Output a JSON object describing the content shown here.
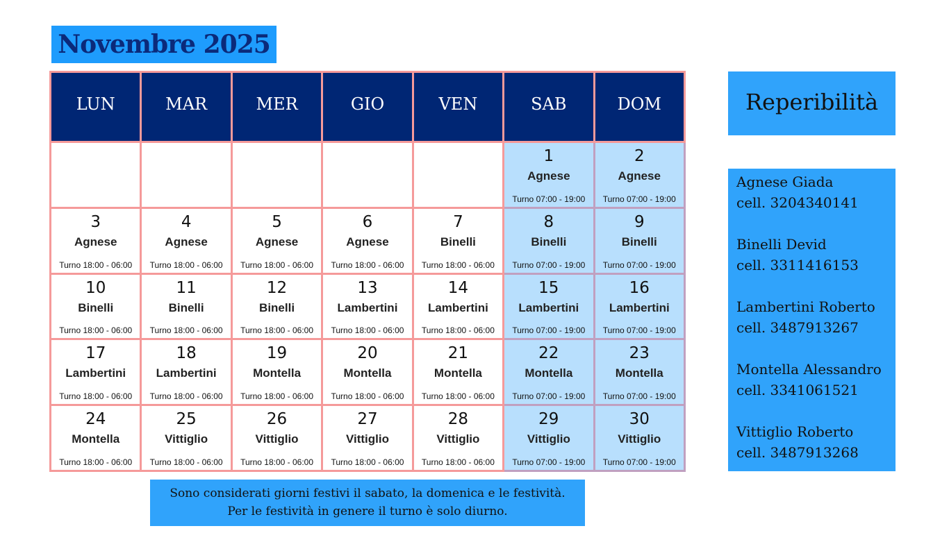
{
  "title": "Novembre 2025",
  "weekdays": [
    "LUN",
    "MAR",
    "MER",
    "GIO",
    "VEN",
    "SAB",
    "DOM"
  ],
  "colors": {
    "header": "#002674",
    "weekend": "#b8dffd",
    "accent": "#30a3fb",
    "grid": "#f59a9a"
  },
  "weeks": [
    [
      null,
      null,
      null,
      null,
      null,
      {
        "day": "1",
        "name": "Agnese",
        "shift": "Turno 07:00 - 19:00"
      },
      {
        "day": "2",
        "name": "Agnese",
        "shift": "Turno 07:00 - 19:00"
      }
    ],
    [
      {
        "day": "3",
        "name": "Agnese",
        "shift": "Turno 18:00 - 06:00"
      },
      {
        "day": "4",
        "name": "Agnese",
        "shift": "Turno 18:00 - 06:00"
      },
      {
        "day": "5",
        "name": "Agnese",
        "shift": "Turno 18:00 - 06:00"
      },
      {
        "day": "6",
        "name": "Agnese",
        "shift": "Turno 18:00 - 06:00"
      },
      {
        "day": "7",
        "name": "Binelli",
        "shift": "Turno 18:00 - 06:00"
      },
      {
        "day": "8",
        "name": "Binelli",
        "shift": "Turno 07:00 - 19:00"
      },
      {
        "day": "9",
        "name": "Binelli",
        "shift": "Turno 07:00 - 19:00"
      }
    ],
    [
      {
        "day": "10",
        "name": "Binelli",
        "shift": "Turno 18:00 - 06:00"
      },
      {
        "day": "11",
        "name": "Binelli",
        "shift": "Turno 18:00 - 06:00"
      },
      {
        "day": "12",
        "name": "Binelli",
        "shift": "Turno 18:00 - 06:00"
      },
      {
        "day": "13",
        "name": "Lambertini",
        "shift": "Turno 18:00 - 06:00"
      },
      {
        "day": "14",
        "name": "Lambertini",
        "shift": "Turno 18:00 - 06:00"
      },
      {
        "day": "15",
        "name": "Lambertini",
        "shift": "Turno 07:00 - 19:00"
      },
      {
        "day": "16",
        "name": "Lambertini",
        "shift": "Turno 07:00 - 19:00"
      }
    ],
    [
      {
        "day": "17",
        "name": "Lambertini",
        "shift": "Turno 18:00 - 06:00"
      },
      {
        "day": "18",
        "name": "Lambertini",
        "shift": "Turno 18:00 - 06:00"
      },
      {
        "day": "19",
        "name": "Montella",
        "shift": "Turno 18:00 - 06:00"
      },
      {
        "day": "20",
        "name": "Montella",
        "shift": "Turno 18:00 - 06:00"
      },
      {
        "day": "21",
        "name": "Montella",
        "shift": "Turno 18:00 - 06:00"
      },
      {
        "day": "22",
        "name": "Montella",
        "shift": "Turno 07:00 - 19:00"
      },
      {
        "day": "23",
        "name": "Montella",
        "shift": "Turno 07:00 - 19:00"
      }
    ],
    [
      {
        "day": "24",
        "name": "Montella",
        "shift": "Turno 18:00 - 06:00"
      },
      {
        "day": "25",
        "name": "Vittiglio",
        "shift": "Turno 18:00 - 06:00"
      },
      {
        "day": "26",
        "name": "Vittiglio",
        "shift": "Turno 18:00 - 06:00"
      },
      {
        "day": "27",
        "name": "Vittiglio",
        "shift": "Turno 18:00 - 06:00"
      },
      {
        "day": "28",
        "name": "Vittiglio",
        "shift": "Turno 18:00 - 06:00"
      },
      {
        "day": "29",
        "name": "Vittiglio",
        "shift": "Turno 07:00 - 19:00"
      },
      {
        "day": "30",
        "name": "Vittiglio",
        "shift": "Turno 07:00 - 19:00"
      }
    ]
  ],
  "reperibilita": {
    "title": "Reperibilità",
    "contacts": [
      {
        "name": "Agnese Giada",
        "phone": "cell. 3204340141"
      },
      {
        "name": "Binelli Devid",
        "phone": "cell. 3311416153"
      },
      {
        "name": "Lambertini Roberto",
        "phone": "cell. 3487913267"
      },
      {
        "name": "Montella Alessandro",
        "phone": "cell. 3341061521"
      },
      {
        "name": "Vittiglio Roberto",
        "phone": "cell. 3487913268"
      }
    ]
  },
  "note": {
    "line1": "Sono considerati giorni festivi il sabato, la domenica e le festività.",
    "line2": "Per le festività in genere il turno è solo diurno."
  }
}
